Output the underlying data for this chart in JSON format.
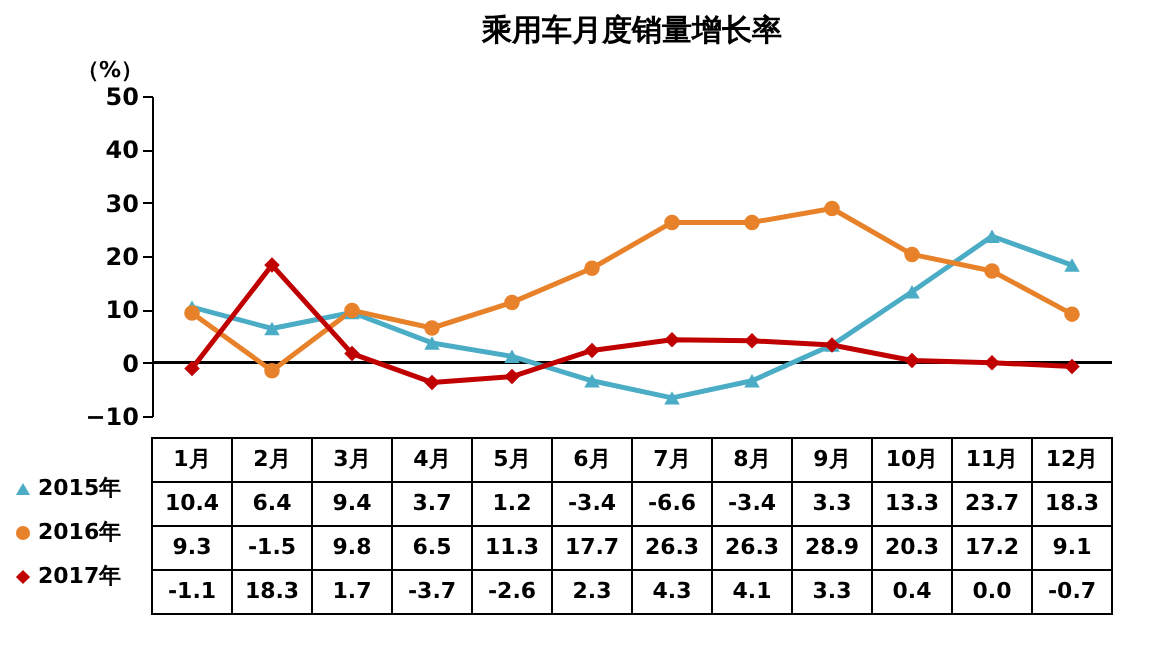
{
  "chart_data": {
    "type": "line",
    "title": "乘用车月度销量增长率",
    "ylabel": "（%）",
    "categories": [
      "1月",
      "2月",
      "3月",
      "4月",
      "5月",
      "6月",
      "7月",
      "8月",
      "9月",
      "10月",
      "11月",
      "12月"
    ],
    "series": [
      {
        "name": "2015年",
        "color": "#4bacc6",
        "marker": "triangle",
        "values": [
          10.4,
          6.4,
          9.4,
          3.7,
          1.2,
          -3.4,
          -6.6,
          -3.4,
          3.3,
          13.3,
          23.7,
          18.3
        ],
        "value_labels": [
          "10.4",
          "6.4",
          "9.4",
          "3.7",
          "1.2",
          "-3.4",
          "-6.6",
          "-3.4",
          "3.3",
          "13.3",
          "23.7",
          "18.3"
        ]
      },
      {
        "name": "2016年",
        "color": "#e8822a",
        "marker": "circle",
        "values": [
          9.3,
          -1.5,
          9.8,
          6.5,
          11.3,
          17.7,
          26.3,
          26.3,
          28.9,
          20.3,
          17.2,
          9.1
        ],
        "value_labels": [
          "9.3",
          "-1.5",
          "9.8",
          "6.5",
          "11.3",
          "17.7",
          "26.3",
          "26.3",
          "28.9",
          "20.3",
          "17.2",
          "9.1"
        ]
      },
      {
        "name": "2017年",
        "color": "#c00000",
        "marker": "diamond",
        "values": [
          -1.1,
          18.3,
          1.7,
          -3.7,
          -2.6,
          2.3,
          4.3,
          4.1,
          3.3,
          0.4,
          0.0,
          -0.7
        ],
        "value_labels": [
          "-1.1",
          "18.3",
          "1.7",
          "-3.7",
          "-2.6",
          "2.3",
          "4.3",
          "4.1",
          "3.3",
          "0.4",
          "0.0",
          "-0.7"
        ]
      }
    ],
    "ylim": [
      -10,
      50
    ],
    "yticks": [
      -10,
      0,
      10,
      20,
      30,
      40,
      50
    ],
    "grid": false,
    "legend": "bottom left",
    "ref_lines": [
      {
        "axis": "y",
        "value": 0,
        "color": "#000000"
      }
    ]
  }
}
